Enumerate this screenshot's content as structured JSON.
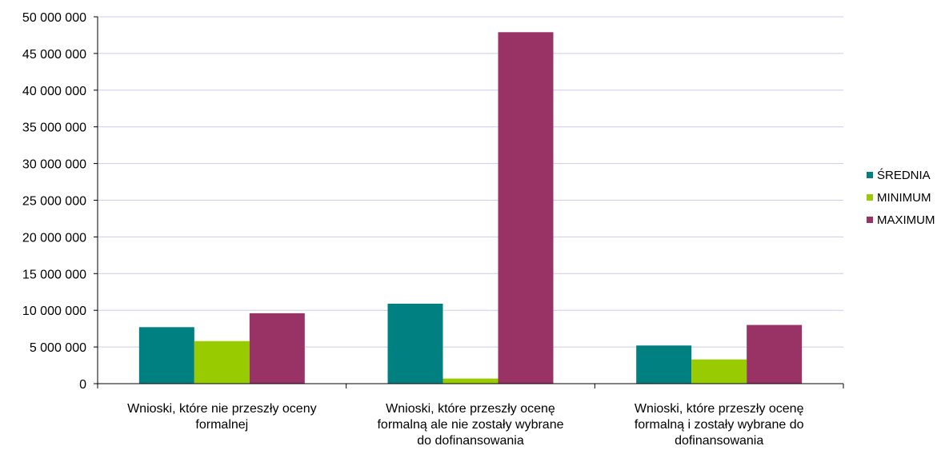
{
  "chart_data": {
    "type": "bar",
    "categories": [
      [
        "Wnioski, które nie przeszły oceny",
        "formalnej"
      ],
      [
        "Wnioski, które przeszły ocenę",
        "formalną ale nie zostały wybrane",
        "do dofinansowania"
      ],
      [
        "Wnioski, które przeszły ocenę",
        "formalną i zostały wybrane  do",
        "dofinansowania"
      ]
    ],
    "series": [
      {
        "name": "ŚREDNIA",
        "values": [
          7700000,
          10900000,
          5200000
        ],
        "color": "#008080"
      },
      {
        "name": "MINIMUM",
        "values": [
          5800000,
          700000,
          3300000
        ],
        "color": "#99cc00"
      },
      {
        "name": "MAXIMUM",
        "values": [
          9600000,
          47900000,
          8000000
        ],
        "color": "#993366"
      }
    ],
    "ylim": [
      0,
      50000000
    ],
    "y_ticks": [
      0,
      5000000,
      10000000,
      15000000,
      20000000,
      25000000,
      30000000,
      35000000,
      40000000,
      45000000,
      50000000
    ],
    "y_tick_labels": [
      "0",
      "5 000 000",
      "10 000 000",
      "15 000 000",
      "20 000 000",
      "25 000 000",
      "30 000 000",
      "35 000 000",
      "40 000 000",
      "45 000 000",
      "50 000 000"
    ],
    "grid": true,
    "gridline_color": "#ccccee",
    "legend_position": "right"
  }
}
